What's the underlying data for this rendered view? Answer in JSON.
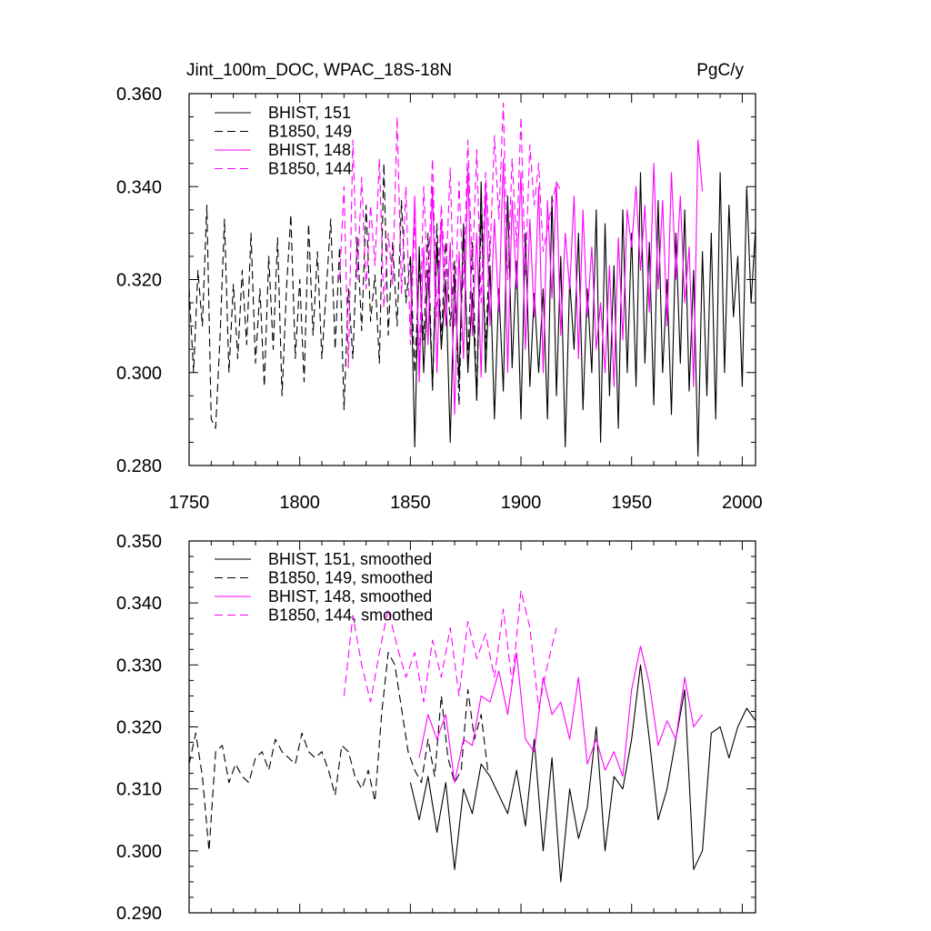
{
  "figure": {
    "title": "Jint_100m_DOC, WPAC_18S-18N",
    "units": "PgC/y"
  },
  "chart_data": [
    {
      "type": "line",
      "title": "Jint_100m_DOC, WPAC_18S-18N",
      "units": "PgC/y",
      "xlabel": "",
      "ylabel": "",
      "xlim": [
        1750,
        2006
      ],
      "ylim": [
        0.28,
        0.36
      ],
      "xticks": [
        1750,
        1800,
        1850,
        1900,
        1950,
        2000
      ],
      "xtick_labels": [
        "1750",
        "1800",
        "1850",
        "1900",
        "1950",
        "2000"
      ],
      "yticks": [
        0.28,
        0.3,
        0.32,
        0.34,
        0.36
      ],
      "ytick_labels": [
        "0.280",
        "0.300",
        "0.320",
        "0.340",
        "0.360"
      ],
      "legend_position": "top-left",
      "series": [
        {
          "name": "BHIST, 151",
          "color": "#000000",
          "dash": "solid",
          "x": [
            1850,
            1852,
            1854,
            1856,
            1858,
            1860,
            1862,
            1864,
            1866,
            1868,
            1870,
            1872,
            1874,
            1876,
            1878,
            1880,
            1882,
            1884,
            1886,
            1888,
            1890,
            1892,
            1894,
            1896,
            1898,
            1900,
            1902,
            1904,
            1906,
            1908,
            1910,
            1912,
            1914,
            1916,
            1918,
            1920,
            1922,
            1924,
            1926,
            1928,
            1930,
            1932,
            1934,
            1936,
            1938,
            1940,
            1942,
            1944,
            1946,
            1948,
            1950,
            1952,
            1954,
            1956,
            1958,
            1960,
            1962,
            1964,
            1966,
            1968,
            1970,
            1972,
            1974,
            1976,
            1978,
            1980,
            1982,
            1984,
            1986,
            1988,
            1990,
            1992,
            1994,
            1996,
            1998,
            2000,
            2002,
            2004,
            2006
          ],
          "y": [
            0.325,
            0.284,
            0.327,
            0.3,
            0.322,
            0.297,
            0.328,
            0.305,
            0.32,
            0.285,
            0.321,
            0.298,
            0.332,
            0.3,
            0.317,
            0.294,
            0.341,
            0.3,
            0.323,
            0.29,
            0.318,
            0.296,
            0.338,
            0.301,
            0.324,
            0.29,
            0.33,
            0.297,
            0.317,
            0.3,
            0.318,
            0.29,
            0.338,
            0.295,
            0.325,
            0.284,
            0.32,
            0.305,
            0.33,
            0.292,
            0.318,
            0.3,
            0.335,
            0.285,
            0.332,
            0.295,
            0.323,
            0.288,
            0.335,
            0.3,
            0.33,
            0.297,
            0.343,
            0.302,
            0.328,
            0.293,
            0.337,
            0.3,
            0.32,
            0.291,
            0.33,
            0.302,
            0.335,
            0.296,
            0.322,
            0.282,
            0.326,
            0.295,
            0.33,
            0.29,
            0.343,
            0.3,
            0.336,
            0.312,
            0.325,
            0.297,
            0.34,
            0.315,
            0.331
          ]
        },
        {
          "name": "B1850, 149",
          "color": "#000000",
          "dash": "dashed",
          "x": [
            1750,
            1752,
            1754,
            1756,
            1758,
            1760,
            1762,
            1764,
            1766,
            1768,
            1770,
            1772,
            1774,
            1776,
            1778,
            1780,
            1782,
            1784,
            1786,
            1788,
            1790,
            1792,
            1794,
            1796,
            1798,
            1800,
            1802,
            1804,
            1806,
            1808,
            1810,
            1812,
            1814,
            1816,
            1818,
            1820,
            1822,
            1824,
            1826,
            1828,
            1830,
            1832,
            1834,
            1836,
            1838,
            1840,
            1842,
            1844,
            1846,
            1848,
            1850,
            1852,
            1854,
            1856,
            1858,
            1860,
            1862,
            1864,
            1866,
            1868,
            1870,
            1872,
            1874,
            1876,
            1878,
            1880,
            1882,
            1884,
            1886
          ],
          "y": [
            0.318,
            0.3,
            0.322,
            0.31,
            0.336,
            0.29,
            0.288,
            0.308,
            0.333,
            0.3,
            0.319,
            0.303,
            0.322,
            0.306,
            0.33,
            0.302,
            0.318,
            0.297,
            0.325,
            0.305,
            0.329,
            0.295,
            0.318,
            0.334,
            0.303,
            0.32,
            0.298,
            0.332,
            0.308,
            0.326,
            0.303,
            0.318,
            0.333,
            0.305,
            0.327,
            0.292,
            0.318,
            0.303,
            0.329,
            0.309,
            0.336,
            0.311,
            0.321,
            0.302,
            0.345,
            0.308,
            0.328,
            0.31,
            0.337,
            0.315,
            0.325,
            0.3,
            0.323,
            0.307,
            0.33,
            0.296,
            0.332,
            0.307,
            0.328,
            0.31,
            0.324,
            0.293,
            0.33,
            0.303,
            0.328,
            0.294,
            0.334,
            0.305,
            0.329
          ]
        },
        {
          "name": "BHIST, 148",
          "color": "#ff00ff",
          "dash": "solid",
          "x": [
            1850,
            1852,
            1854,
            1856,
            1858,
            1860,
            1862,
            1864,
            1866,
            1868,
            1870,
            1872,
            1874,
            1876,
            1878,
            1880,
            1882,
            1884,
            1886,
            1888,
            1890,
            1892,
            1894,
            1896,
            1898,
            1900,
            1902,
            1904,
            1906,
            1908,
            1910,
            1912,
            1914,
            1916,
            1918,
            1920,
            1922,
            1924,
            1926,
            1928,
            1930,
            1932,
            1934,
            1936,
            1938,
            1940,
            1942,
            1944,
            1946,
            1948,
            1950,
            1952,
            1954,
            1956,
            1958,
            1960,
            1962,
            1964,
            1966,
            1968,
            1970,
            1972,
            1974,
            1976,
            1978,
            1980,
            1982
          ],
          "y": [
            0.31,
            0.338,
            0.298,
            0.327,
            0.306,
            0.34,
            0.3,
            0.333,
            0.31,
            0.328,
            0.291,
            0.326,
            0.303,
            0.344,
            0.308,
            0.33,
            0.299,
            0.34,
            0.31,
            0.333,
            0.313,
            0.346,
            0.3,
            0.337,
            0.318,
            0.343,
            0.305,
            0.333,
            0.312,
            0.34,
            0.3,
            0.337,
            0.316,
            0.341,
            0.308,
            0.33,
            0.318,
            0.338,
            0.303,
            0.335,
            0.312,
            0.327,
            0.305,
            0.315,
            0.3,
            0.323,
            0.297,
            0.329,
            0.307,
            0.335,
            0.327,
            0.34,
            0.322,
            0.336,
            0.313,
            0.345,
            0.318,
            0.337,
            0.31,
            0.343,
            0.32,
            0.338,
            0.315,
            0.327,
            0.297,
            0.35,
            0.339
          ]
        },
        {
          "name": "B1850, 144",
          "color": "#ff00ff",
          "dash": "dashed",
          "x": [
            1818,
            1820,
            1822,
            1824,
            1826,
            1828,
            1830,
            1832,
            1834,
            1836,
            1838,
            1840,
            1842,
            1844,
            1846,
            1848,
            1850,
            1852,
            1854,
            1856,
            1858,
            1860,
            1862,
            1864,
            1866,
            1868,
            1870,
            1872,
            1874,
            1876,
            1878,
            1880,
            1882,
            1884,
            1886,
            1888,
            1890,
            1892,
            1894,
            1896,
            1898,
            1900,
            1902,
            1904,
            1906,
            1908,
            1910,
            1912,
            1914,
            1916,
            1918
          ],
          "y": [
            0.32,
            0.34,
            0.301,
            0.35,
            0.32,
            0.342,
            0.318,
            0.336,
            0.323,
            0.346,
            0.314,
            0.33,
            0.319,
            0.355,
            0.317,
            0.34,
            0.306,
            0.333,
            0.302,
            0.34,
            0.318,
            0.346,
            0.312,
            0.336,
            0.32,
            0.344,
            0.31,
            0.341,
            0.318,
            0.35,
            0.322,
            0.348,
            0.315,
            0.343,
            0.325,
            0.351,
            0.333,
            0.358,
            0.32,
            0.346,
            0.327,
            0.355,
            0.321,
            0.349,
            0.336,
            0.345,
            0.326,
            0.331,
            0.336,
            0.341,
            0.339
          ]
        }
      ]
    },
    {
      "type": "line",
      "title": "",
      "xlabel": "",
      "ylabel": "",
      "xlim": [
        1750,
        2006
      ],
      "ylim": [
        0.29,
        0.35
      ],
      "xticks": [
        1750,
        1800,
        1850,
        1900,
        1950,
        2000
      ],
      "yticks": [
        0.29,
        0.3,
        0.31,
        0.32,
        0.33,
        0.34,
        0.35
      ],
      "ytick_labels": [
        "0.290",
        "0.300",
        "0.310",
        "0.320",
        "0.330",
        "0.340",
        "0.350"
      ],
      "legend_position": "top-left",
      "series": [
        {
          "name": "BHIST, 151, smoothed",
          "color": "#000000",
          "dash": "solid",
          "x": [
            1850,
            1854,
            1858,
            1862,
            1866,
            1870,
            1874,
            1878,
            1882,
            1886,
            1890,
            1894,
            1898,
            1902,
            1906,
            1910,
            1914,
            1918,
            1922,
            1926,
            1930,
            1934,
            1938,
            1942,
            1946,
            1950,
            1954,
            1958,
            1962,
            1966,
            1970,
            1974,
            1978,
            1982,
            1986,
            1990,
            1994,
            1998,
            2002,
            2006
          ],
          "y": [
            0.311,
            0.305,
            0.312,
            0.303,
            0.311,
            0.297,
            0.31,
            0.306,
            0.314,
            0.312,
            0.309,
            0.306,
            0.313,
            0.304,
            0.318,
            0.3,
            0.315,
            0.295,
            0.31,
            0.302,
            0.307,
            0.32,
            0.3,
            0.312,
            0.31,
            0.318,
            0.33,
            0.318,
            0.305,
            0.31,
            0.318,
            0.326,
            0.297,
            0.3,
            0.319,
            0.32,
            0.315,
            0.32,
            0.323,
            0.321
          ]
        },
        {
          "name": "B1850, 149, smoothed",
          "color": "#000000",
          "dash": "dashed",
          "x": [
            1750,
            1753,
            1756,
            1759,
            1762,
            1765,
            1768,
            1771,
            1774,
            1777,
            1780,
            1783,
            1786,
            1789,
            1792,
            1795,
            1798,
            1801,
            1804,
            1807,
            1810,
            1813,
            1816,
            1819,
            1822,
            1825,
            1828,
            1831,
            1834,
            1837,
            1840,
            1843,
            1846,
            1849,
            1852,
            1855,
            1858,
            1861,
            1864,
            1867,
            1870,
            1873,
            1876,
            1879,
            1882,
            1885
          ],
          "y": [
            0.314,
            0.319,
            0.312,
            0.3,
            0.316,
            0.317,
            0.311,
            0.314,
            0.312,
            0.311,
            0.315,
            0.316,
            0.313,
            0.318,
            0.316,
            0.315,
            0.314,
            0.319,
            0.316,
            0.315,
            0.316,
            0.313,
            0.309,
            0.317,
            0.316,
            0.312,
            0.31,
            0.313,
            0.308,
            0.322,
            0.332,
            0.33,
            0.323,
            0.316,
            0.313,
            0.311,
            0.318,
            0.312,
            0.325,
            0.315,
            0.311,
            0.313,
            0.326,
            0.318,
            0.322,
            0.313
          ]
        },
        {
          "name": "BHIST, 148, smoothed",
          "color": "#ff00ff",
          "dash": "solid",
          "x": [
            1854,
            1858,
            1862,
            1866,
            1870,
            1874,
            1878,
            1882,
            1886,
            1890,
            1894,
            1898,
            1902,
            1906,
            1910,
            1914,
            1918,
            1922,
            1926,
            1930,
            1934,
            1938,
            1942,
            1946,
            1950,
            1954,
            1958,
            1962,
            1966,
            1970,
            1974,
            1978,
            1982
          ],
          "y": [
            0.315,
            0.322,
            0.318,
            0.322,
            0.311,
            0.318,
            0.317,
            0.325,
            0.324,
            0.329,
            0.322,
            0.332,
            0.318,
            0.316,
            0.328,
            0.322,
            0.324,
            0.318,
            0.328,
            0.314,
            0.318,
            0.313,
            0.316,
            0.312,
            0.326,
            0.333,
            0.327,
            0.317,
            0.321,
            0.318,
            0.328,
            0.32,
            0.322
          ]
        },
        {
          "name": "B1850, 144, smoothed",
          "color": "#ff00ff",
          "dash": "dashed",
          "x": [
            1820,
            1824,
            1828,
            1832,
            1836,
            1840,
            1844,
            1848,
            1852,
            1856,
            1860,
            1864,
            1868,
            1872,
            1876,
            1880,
            1884,
            1888,
            1892,
            1896,
            1900,
            1904,
            1908,
            1912,
            1916
          ],
          "y": [
            0.325,
            0.338,
            0.33,
            0.324,
            0.332,
            0.339,
            0.333,
            0.328,
            0.332,
            0.324,
            0.334,
            0.328,
            0.336,
            0.325,
            0.337,
            0.331,
            0.335,
            0.328,
            0.339,
            0.327,
            0.342,
            0.336,
            0.323,
            0.33,
            0.336
          ]
        }
      ]
    }
  ]
}
